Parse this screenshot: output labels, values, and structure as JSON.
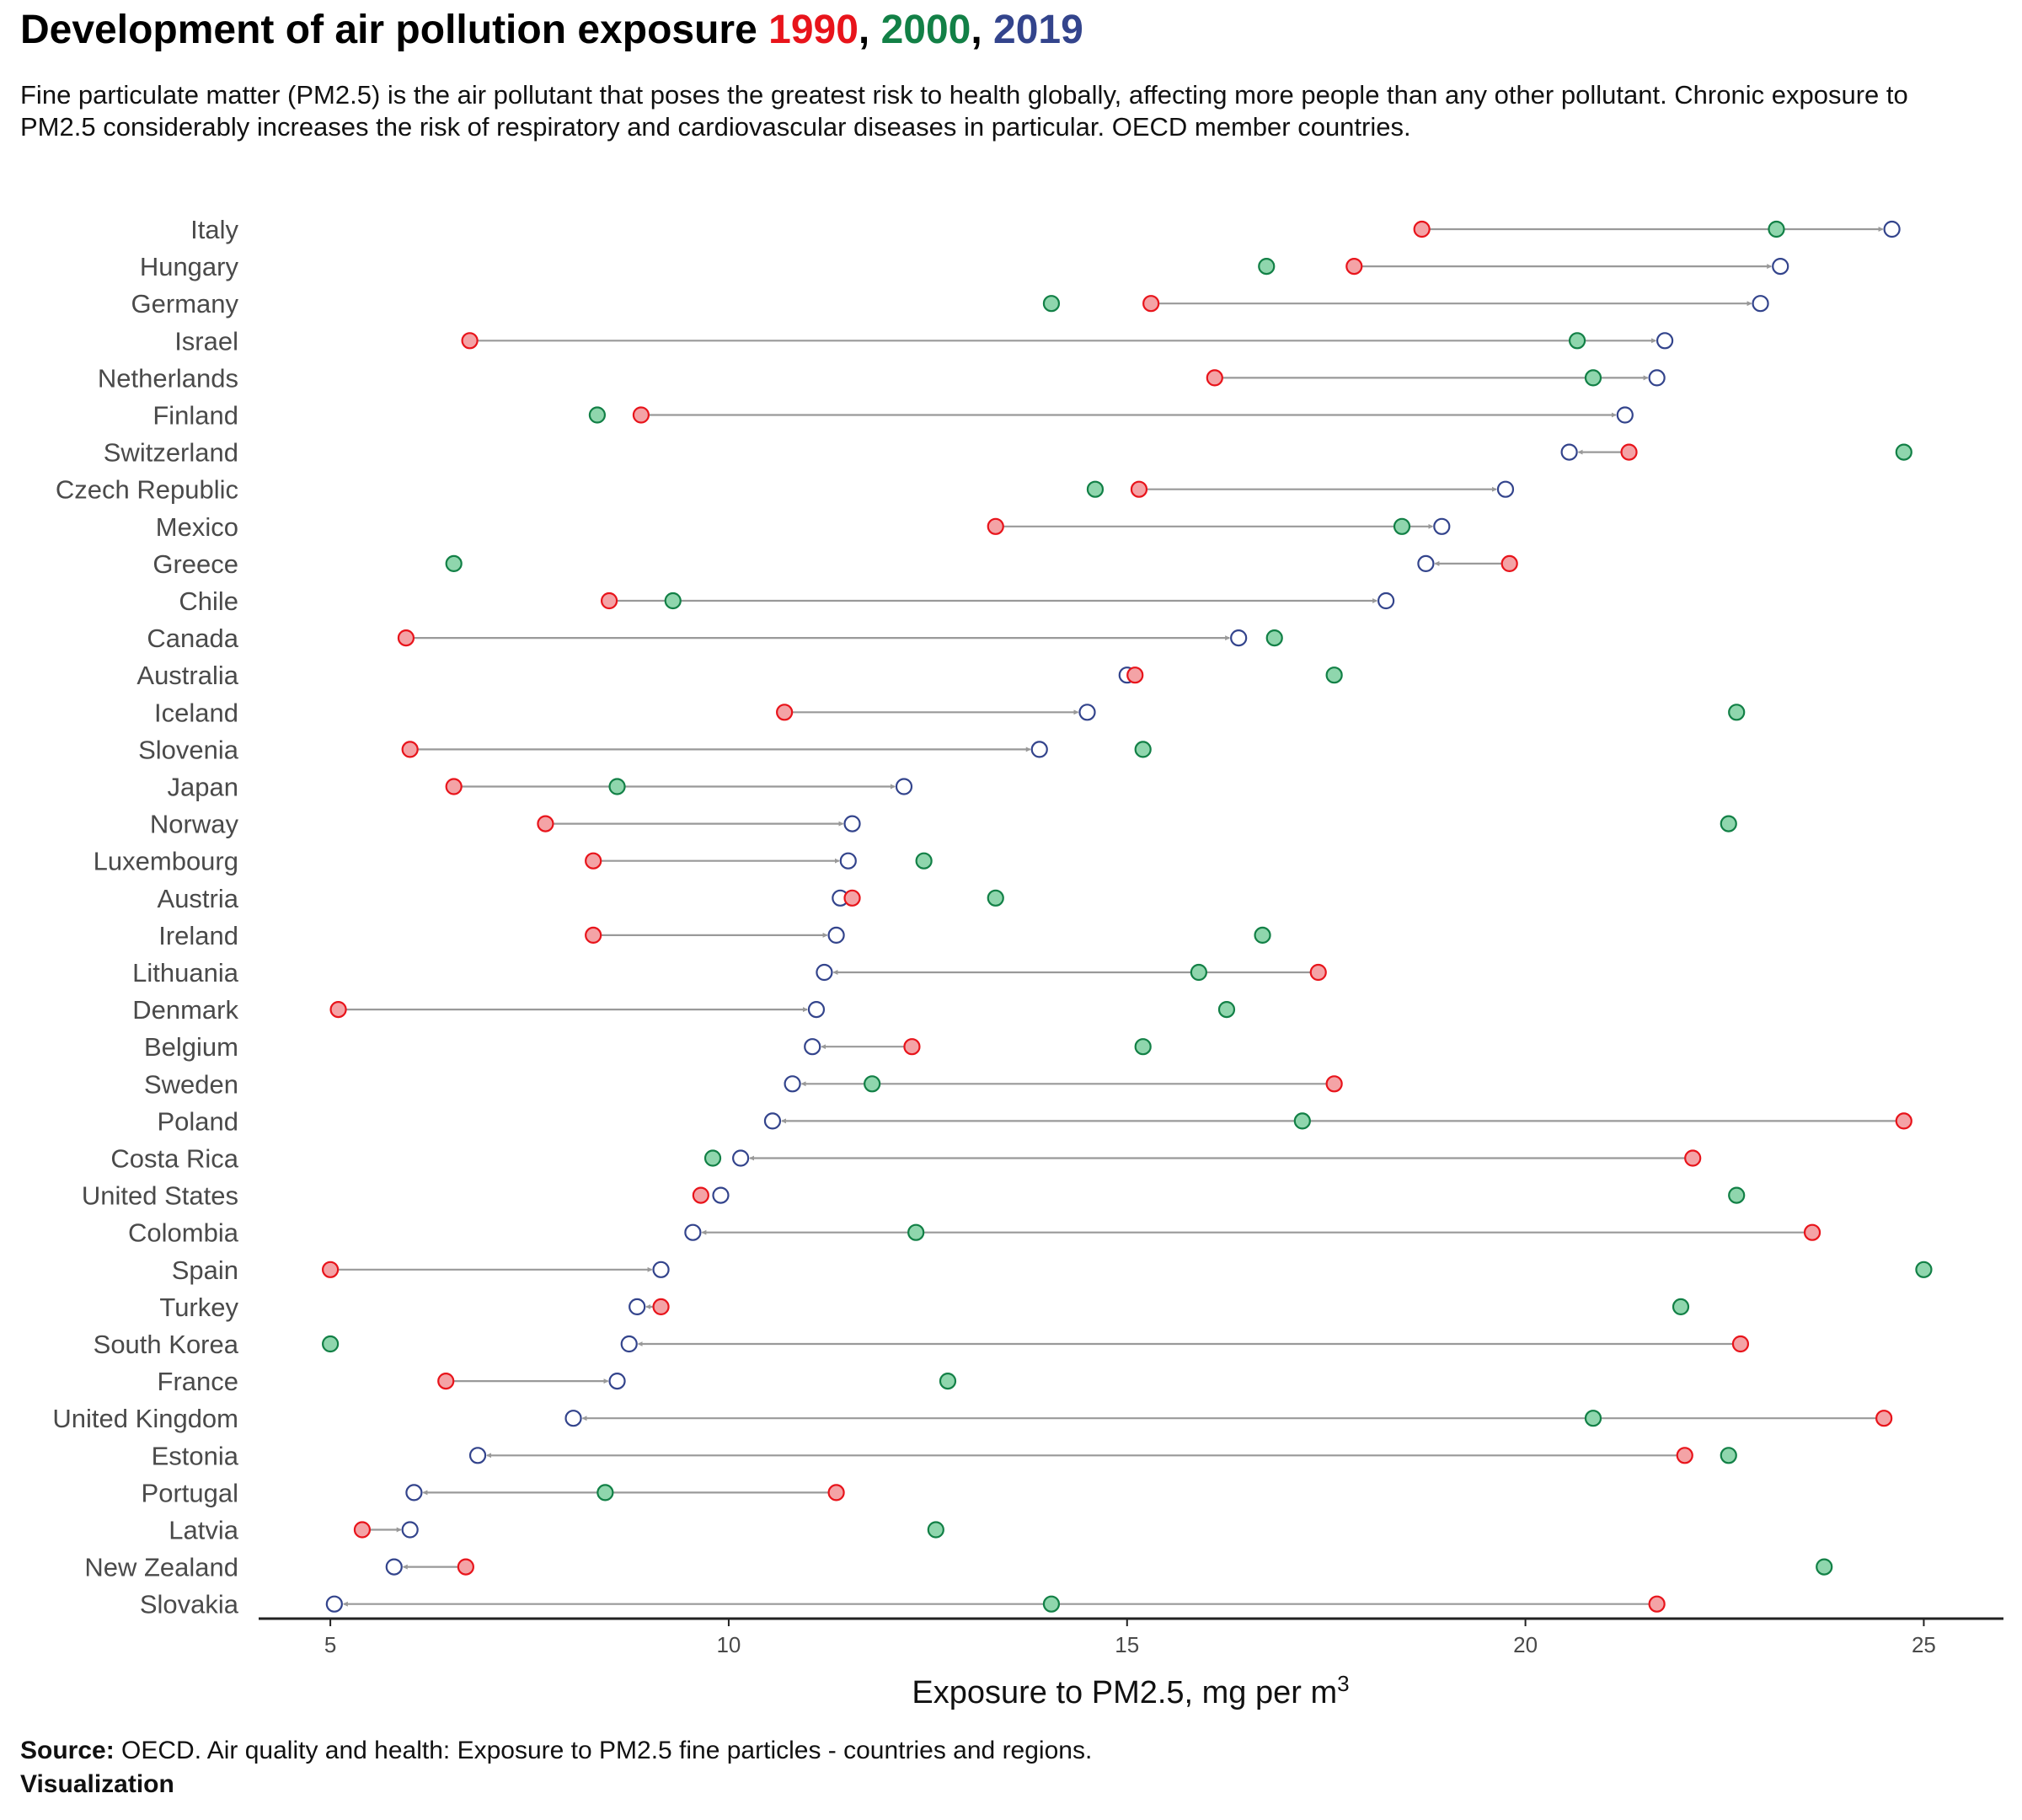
{
  "title": {
    "main": "Development of air pollution exposure ",
    "sep": ", ",
    "years": [
      "1990",
      "2000",
      "2019"
    ]
  },
  "subtitle": "Fine particulate matter (PM2.5) is the air pollutant that poses the greatest risk to health globally, affecting more people than any other pollutant. Chronic exposure to PM2.5 considerably increases the risk of respiratory and cardiovascular diseases in particular. OECD member countries.",
  "source": {
    "label": "Source:",
    "text": " OECD. Air quality and health: Exposure to PM2.5 fine particles - countries and regions.",
    "visualization": "Visualization"
  },
  "colors": {
    "y1990_fill": "#f4a3a6",
    "y1990_stroke": "#e8141b",
    "y1990_text": "#e8141b",
    "y2000_fill": "#8fd6ad",
    "y2000_stroke": "#128046",
    "y2000_text": "#128046",
    "y2019_fill": "#ffffff",
    "y2019_stroke": "#33448c",
    "y2019_text": "#33448c",
    "segment": "#999999",
    "axis": "#222222"
  },
  "chart_data": {
    "type": "dumbbell",
    "xlabel": "Exposure to PM2.5, mg per m",
    "xlabel_sup": "3",
    "xlim": [
      4.1,
      26
    ],
    "xticks": [
      5,
      10,
      15,
      20,
      25
    ],
    "series": [
      {
        "name": "1990",
        "key": "v1990"
      },
      {
        "name": "2000",
        "key": "v2000"
      },
      {
        "name": "2019",
        "key": "v2019"
      }
    ],
    "arrow_from": "1990",
    "arrow_to": "2019",
    "grid": false,
    "countries": [
      {
        "name": "Italy",
        "v1990": 18.7,
        "v2000": 23.15,
        "v2019": 24.6
      },
      {
        "name": "Hungary",
        "v1990": 17.85,
        "v2000": 16.75,
        "v2019": 23.2
      },
      {
        "name": "Germany",
        "v1990": 15.3,
        "v2000": 14.05,
        "v2019": 22.95
      },
      {
        "name": "Israel",
        "v1990": 6.75,
        "v2000": 20.65,
        "v2019": 21.75
      },
      {
        "name": "Netherlands",
        "v1990": 16.1,
        "v2000": 20.85,
        "v2019": 21.65
      },
      {
        "name": "Finland",
        "v1990": 8.9,
        "v2000": 8.35,
        "v2019": 21.25
      },
      {
        "name": "Switzerland",
        "v1990": 21.3,
        "v2000": 24.75,
        "v2019": 20.55
      },
      {
        "name": "Czech Republic",
        "v1990": 15.15,
        "v2000": 14.6,
        "v2019": 19.75
      },
      {
        "name": "Mexico",
        "v1990": 13.35,
        "v2000": 18.45,
        "v2019": 18.95
      },
      {
        "name": "Greece",
        "v1990": 19.8,
        "v2000": 6.55,
        "v2019": 18.75
      },
      {
        "name": "Chile",
        "v1990": 8.5,
        "v2000": 9.3,
        "v2019": 18.25
      },
      {
        "name": "Canada",
        "v1990": 5.95,
        "v2000": 16.85,
        "v2019": 16.4
      },
      {
        "name": "Australia",
        "v1990": 15.1,
        "v2000": 17.6,
        "v2019": 15.0
      },
      {
        "name": "Iceland",
        "v1990": 10.7,
        "v2000": 22.65,
        "v2019": 14.5
      },
      {
        "name": "Slovenia",
        "v1990": 6.0,
        "v2000": 15.2,
        "v2019": 13.9
      },
      {
        "name": "Japan",
        "v1990": 6.55,
        "v2000": 8.6,
        "v2019": 12.2
      },
      {
        "name": "Norway",
        "v1990": 7.7,
        "v2000": 22.55,
        "v2019": 11.55
      },
      {
        "name": "Luxembourg",
        "v1990": 8.3,
        "v2000": 12.45,
        "v2019": 11.5
      },
      {
        "name": "Austria",
        "v1990": 11.55,
        "v2000": 13.35,
        "v2019": 11.4
      },
      {
        "name": "Ireland",
        "v1990": 8.3,
        "v2000": 16.7,
        "v2019": 11.35
      },
      {
        "name": "Lithuania",
        "v1990": 17.4,
        "v2000": 15.9,
        "v2019": 11.2
      },
      {
        "name": "Denmark",
        "v1990": 5.1,
        "v2000": 16.25,
        "v2019": 11.1
      },
      {
        "name": "Belgium",
        "v1990": 12.3,
        "v2000": 15.2,
        "v2019": 11.05
      },
      {
        "name": "Sweden",
        "v1990": 17.6,
        "v2000": 11.8,
        "v2019": 10.8
      },
      {
        "name": "Poland",
        "v1990": 24.75,
        "v2000": 17.2,
        "v2019": 10.55
      },
      {
        "name": "Costa Rica",
        "v1990": 22.1,
        "v2000": 9.8,
        "v2019": 10.15
      },
      {
        "name": "United States",
        "v1990": 9.65,
        "v2000": 22.65,
        "v2019": 9.9
      },
      {
        "name": "Colombia",
        "v1990": 23.6,
        "v2000": 12.35,
        "v2019": 9.55
      },
      {
        "name": "Spain",
        "v1990": 5.0,
        "v2000": 25.0,
        "v2019": 9.15
      },
      {
        "name": "Turkey",
        "v1990": 9.15,
        "v2000": 21.95,
        "v2019": 8.85
      },
      {
        "name": "South Korea",
        "v1990": 22.7,
        "v2000": 5.0,
        "v2019": 8.75
      },
      {
        "name": "France",
        "v1990": 6.45,
        "v2000": 12.75,
        "v2019": 8.6
      },
      {
        "name": "United Kingdom",
        "v1990": 24.5,
        "v2000": 20.85,
        "v2019": 8.05
      },
      {
        "name": "Estonia",
        "v1990": 22.0,
        "v2000": 22.55,
        "v2019": 6.85
      },
      {
        "name": "Portugal",
        "v1990": 11.35,
        "v2000": 8.45,
        "v2019": 6.05
      },
      {
        "name": "Latvia",
        "v1990": 5.4,
        "v2000": 12.6,
        "v2019": 6.0
      },
      {
        "name": "New Zealand",
        "v1990": 6.7,
        "v2000": 23.75,
        "v2019": 5.8
      },
      {
        "name": "Slovakia",
        "v1990": 21.65,
        "v2000": 14.05,
        "v2019": 5.05
      }
    ]
  }
}
